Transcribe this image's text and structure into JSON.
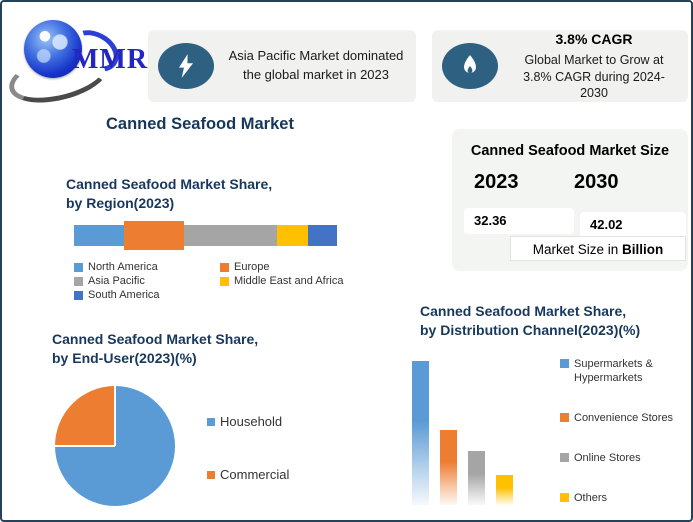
{
  "colors": {
    "frame_border": "#24425c",
    "title_navy": "#17375e",
    "icon_circle": "#2e6082",
    "logo_blue": "#2327c0",
    "badge_background": "#f1f1ef",
    "card_background": "#f2f5f2"
  },
  "header": {
    "logo": {
      "text": "MMR"
    },
    "badge_dominant": {
      "icon": "lightning-icon",
      "line1": "Asia Pacific Market dominated",
      "line2": "the global market in 2023"
    },
    "badge_cagr": {
      "icon": "flame-icon",
      "title": "3.8% CAGR",
      "line1": "Global Market to Grow at",
      "line2": "3.8% CAGR during 2024-2030"
    }
  },
  "page_title": "Canned Seafood Market",
  "market_size_card": {
    "title": "Canned Seafood Market Size",
    "year_left": "2023",
    "year_right": "2030",
    "value_left": "32.36",
    "value_right": "42.02",
    "unit_prefix": "Market Size in ",
    "unit_bold": "Billion"
  },
  "chart_data": [
    {
      "id": "region_share",
      "type": "bar",
      "variant": "stacked-horizontal",
      "title_line1": "Canned Seafood Market Share,",
      "title_line2": "by Region(2023)",
      "categories": [
        "North America",
        "Europe",
        "Asia Pacific",
        "Middle East and Africa",
        "South America"
      ],
      "values": [
        19,
        23,
        35,
        12,
        11
      ],
      "colors": [
        "#5B9BD5",
        "#ED7D31",
        "#A5A5A5",
        "#FFC000",
        "#4472C4"
      ],
      "highlight": "Europe",
      "legend_position": "bottom",
      "grid": false
    },
    {
      "id": "end_user_share",
      "type": "pie",
      "title_line1": "Canned Seafood Market Share,",
      "title_line2": "by End-User(2023)(%)",
      "categories": [
        "Household",
        "Commercial"
      ],
      "values": [
        75,
        25
      ],
      "colors": [
        "#5B9BD5",
        "#ED7D31"
      ],
      "legend_position": "right",
      "start_angle_deg": 0,
      "direction": "clockwise"
    },
    {
      "id": "distribution_channel_share",
      "type": "bar",
      "variant": "vertical-gradient",
      "title_line1": "Canned Seafood Market Share,",
      "title_line2": "by Distribution Channel(2023)(%)",
      "categories": [
        "Supermarkets & Hypermarkets",
        "Convenience Stores",
        "Online Stores",
        "Others"
      ],
      "values": [
        48,
        25,
        18,
        10
      ],
      "colors": [
        "#5B9BD5",
        "#ED7D31",
        "#A5A5A5",
        "#FFC000"
      ],
      "ylim": [
        0,
        50
      ],
      "legend_position": "right",
      "grid": false
    }
  ]
}
